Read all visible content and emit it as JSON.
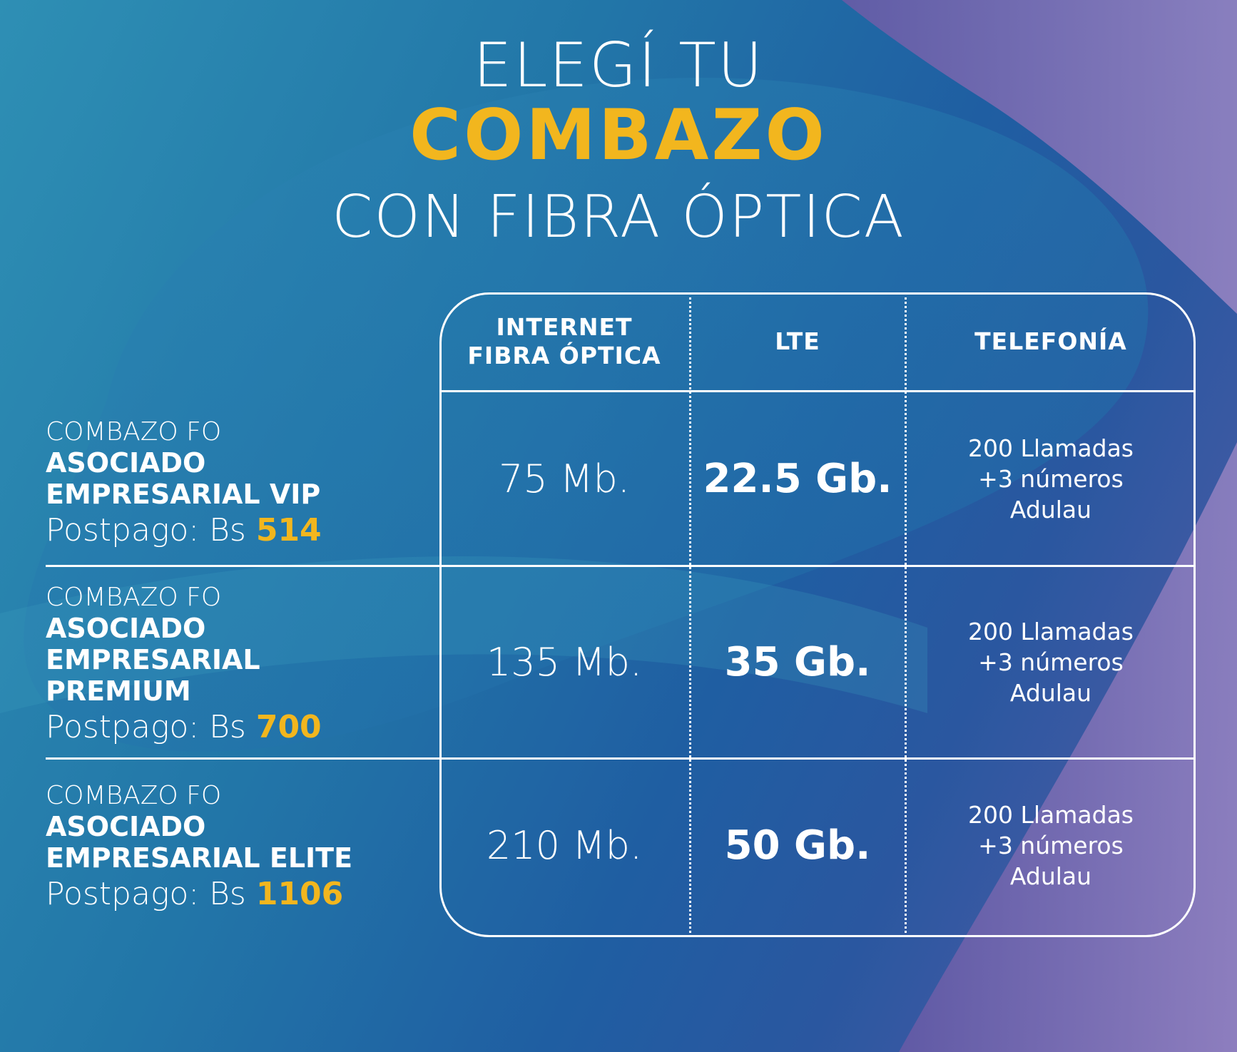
{
  "title": {
    "line1": "ELEGÍ TU",
    "line2": "COMBAZO",
    "line3": "CON FIBRA ÓPTICA"
  },
  "table": {
    "headers": {
      "internet": "INTERNET\nFIBRA ÓPTICA",
      "lte": "LTE",
      "telefonia": "TELEFONÍA"
    },
    "rows": [
      {
        "prefix": "COMBAZO FO",
        "name": "ASOCIADO\nEMPRESARIAL VIP",
        "price_label": "Postpago: Bs",
        "price": "514",
        "internet": "75 Mb.",
        "lte": "22.5 Gb.",
        "telefonia": [
          "200 Llamadas",
          "+3 números",
          "Adulau"
        ]
      },
      {
        "prefix": "COMBAZO FO",
        "name": "ASOCIADO\nEMPRESARIAL\nPREMIUM",
        "price_label": "Postpago: Bs",
        "price": "700",
        "internet": "135 Mb.",
        "lte": "35 Gb.",
        "telefonia": [
          "200 Llamadas",
          "+3 números",
          "Adulau"
        ]
      },
      {
        "prefix": "COMBAZO FO",
        "name": "ASOCIADO\nEMPRESARIAL ELITE",
        "price_label": "Postpago: Bs",
        "price": "1106",
        "internet": "210 Mb.",
        "lte": "50 Gb.",
        "telefonia": [
          "200 Llamadas",
          "+3 números",
          "Adulau"
        ]
      }
    ]
  },
  "colors": {
    "accent": "#f2b61e",
    "text": "#ffffff",
    "bg_teal": "#2e8fb4",
    "bg_blue": "#1f5ea2",
    "bg_purple": "#7a6ab0"
  }
}
